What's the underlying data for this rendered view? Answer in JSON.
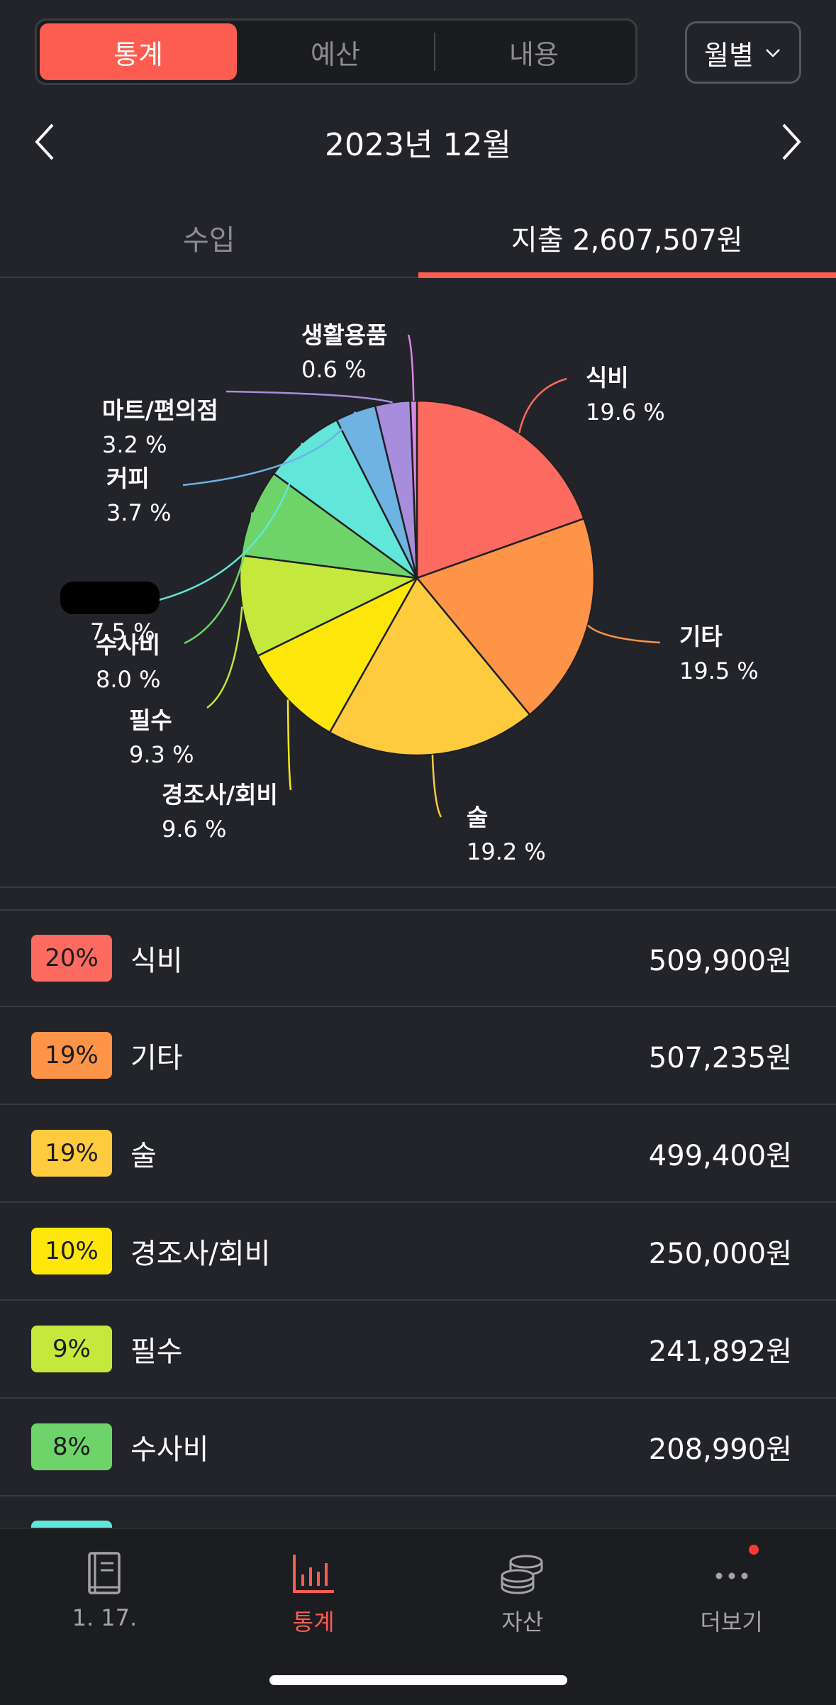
{
  "top_tabs": [
    {
      "label": "통계",
      "active": true
    },
    {
      "label": "예산",
      "active": false
    },
    {
      "label": "내용",
      "active": false
    }
  ],
  "period_button": {
    "label": "월별"
  },
  "month": {
    "title": "2023년 12월"
  },
  "summary_tabs": {
    "income_label": "수입",
    "expense_label": "지출 2,607,507원"
  },
  "chart_data": {
    "type": "pie",
    "title": "",
    "slices": [
      {
        "label": "식비",
        "percent": 19.6,
        "percent_text": "19.6 %",
        "color": "#fd6b60"
      },
      {
        "label": "기타",
        "percent": 19.5,
        "percent_text": "19.5 %",
        "color": "#fd9447"
      },
      {
        "label": "술",
        "percent": 19.2,
        "percent_text": "19.2 %",
        "color": "#fecb3f"
      },
      {
        "label": "경조사/회비",
        "percent": 9.6,
        "percent_text": "9.6 %",
        "color": "#fde70a"
      },
      {
        "label": "필수",
        "percent": 9.3,
        "percent_text": "9.3 %",
        "color": "#c5e83c"
      },
      {
        "label": "수사비",
        "percent": 8.0,
        "percent_text": "8.0 %",
        "color": "#6ed46a"
      },
      {
        "label": "",
        "percent": 7.5,
        "percent_text": "7.5 %",
        "color": "#62e6da"
      },
      {
        "label": "커피",
        "percent": 3.7,
        "percent_text": "3.7 %",
        "color": "#6eb3e2"
      },
      {
        "label": "마트/편의점",
        "percent": 3.2,
        "percent_text": "3.2 %",
        "color": "#a98ddd"
      },
      {
        "label": "생활용품",
        "percent": 0.6,
        "percent_text": "0.6 %",
        "color": "#d887e6"
      }
    ]
  },
  "categories": [
    {
      "percent": "20%",
      "name": "식비",
      "amount": "509,900원",
      "color": "#fd6b60"
    },
    {
      "percent": "19%",
      "name": "기타",
      "amount": "507,235원",
      "color": "#fd9447"
    },
    {
      "percent": "19%",
      "name": "술",
      "amount": "499,400원",
      "color": "#fecb3f"
    },
    {
      "percent": "10%",
      "name": "경조사/회비",
      "amount": "250,000원",
      "color": "#fde70a"
    },
    {
      "percent": "9%",
      "name": "필수",
      "amount": "241,892원",
      "color": "#c5e83c"
    },
    {
      "percent": "8%",
      "name": "수사비",
      "amount": "208,990원",
      "color": "#6ed46a"
    }
  ],
  "bottom_nav": [
    {
      "label": "1. 17.",
      "icon": "book-icon",
      "active": false
    },
    {
      "label": "통계",
      "icon": "bar-chart-icon",
      "active": true
    },
    {
      "label": "자산",
      "icon": "coins-icon",
      "active": false
    },
    {
      "label": "더보기",
      "icon": "more-dots-icon",
      "active": false
    }
  ],
  "colors": {
    "accent": "#fd5d51",
    "background": "#232429"
  }
}
